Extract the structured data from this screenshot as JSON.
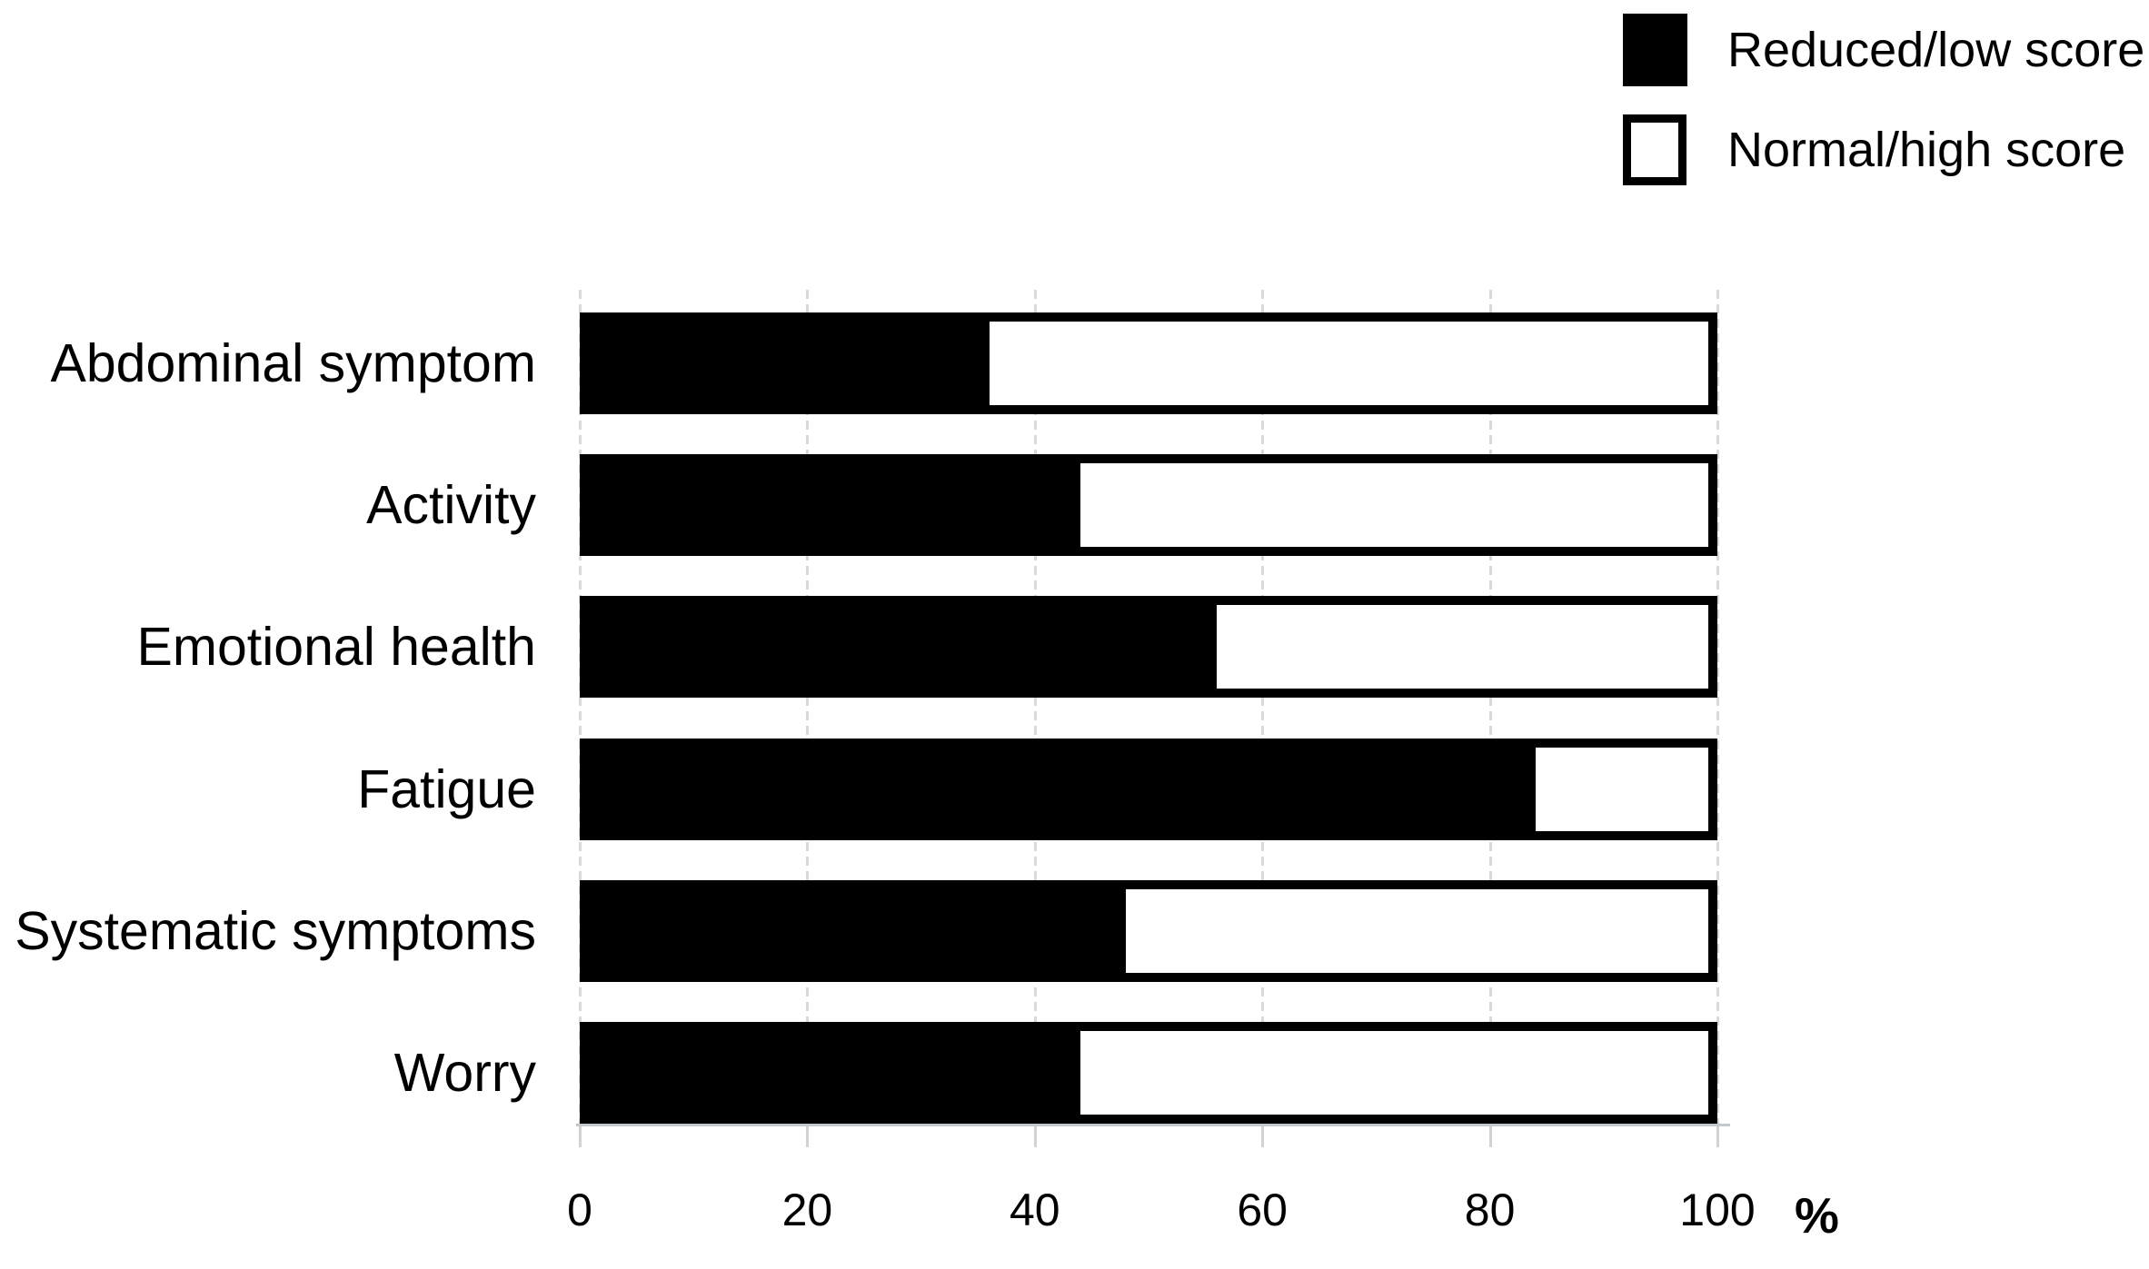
{
  "chart_data": {
    "type": "bar",
    "orientation": "horizontal",
    "stacked": true,
    "title": "",
    "xlabel": "%",
    "xlim": [
      0,
      100
    ],
    "xticks": [
      "0",
      "20",
      "40",
      "60",
      "80",
      "100"
    ],
    "grid": true,
    "legend_position": "top-right",
    "categories": [
      "Abdominal symptom",
      "Activity",
      "Emotional health",
      "Fatigue",
      "Systematic symptoms",
      "Worry"
    ],
    "series": [
      {
        "name": "Reduced/low score",
        "color": "#000000",
        "values": [
          36,
          44,
          56,
          84,
          48,
          44
        ]
      },
      {
        "name": "Normal/high score",
        "color": "#ffffff",
        "values": [
          64,
          56,
          44,
          16,
          52,
          56
        ]
      }
    ],
    "colors": {
      "bar_border": "#000000",
      "gridline": "#d9d9d9",
      "axis_line": "#c4c9cc",
      "text": "#000000",
      "background": "#ffffff"
    }
  }
}
